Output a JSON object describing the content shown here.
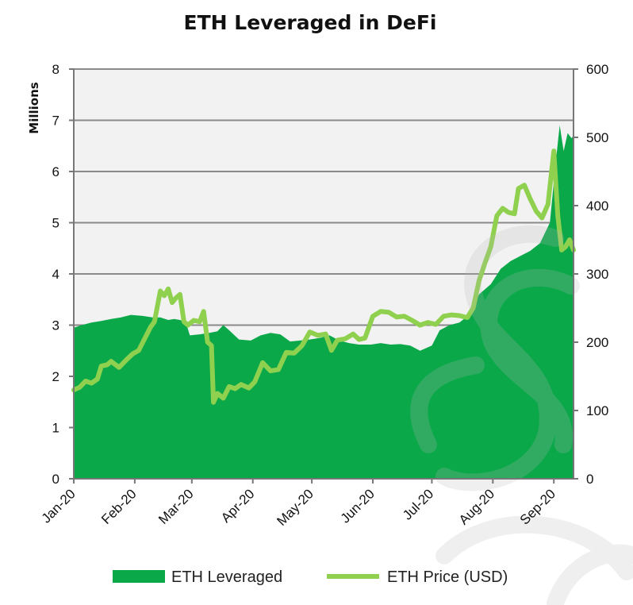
{
  "chart_data": {
    "type": "area",
    "title": "ETH Leveraged in DeFi",
    "ylabel": "Millions",
    "xlabel": "",
    "x_tick_labels": [
      "Jan-20",
      "Feb-20",
      "Mar-20",
      "Apr-20",
      "May-20",
      "Jun-20",
      "Jul-20",
      "Aug-20",
      "Sep-20"
    ],
    "x_tick_dates": [
      "2020-01-01",
      "2020-02-01",
      "2020-03-01",
      "2020-04-01",
      "2020-05-01",
      "2020-06-01",
      "2020-07-01",
      "2020-08-01",
      "2020-09-01"
    ],
    "x_range": [
      "2020-01-01",
      "2020-09-11"
    ],
    "y_left": {
      "min": 0,
      "max": 8,
      "ticks": [
        "0",
        "1",
        "2",
        "3",
        "4",
        "5",
        "6",
        "7",
        "8"
      ]
    },
    "y_right": {
      "min": 0,
      "max": 600,
      "ticks": [
        "0",
        "100",
        "200",
        "300",
        "400",
        "500",
        "600"
      ]
    },
    "grid": "horizontal",
    "plot_background": "#f2f2f2",
    "legend_position": "bottom",
    "series": [
      {
        "name": "ETH Leveraged",
        "kind": "area",
        "axis": "left",
        "color": "#0ba84a",
        "points": [
          [
            "2020-01-01",
            2.95
          ],
          [
            "2020-01-05",
            3.0
          ],
          [
            "2020-01-10",
            3.05
          ],
          [
            "2020-01-15",
            3.08
          ],
          [
            "2020-01-20",
            3.12
          ],
          [
            "2020-01-25",
            3.15
          ],
          [
            "2020-01-30",
            3.2
          ],
          [
            "2020-02-05",
            3.18
          ],
          [
            "2020-02-10",
            3.15
          ],
          [
            "2020-02-14",
            3.15
          ],
          [
            "2020-02-18",
            3.1
          ],
          [
            "2020-02-21",
            3.12
          ],
          [
            "2020-02-24",
            3.1
          ],
          [
            "2020-02-27",
            3.05
          ],
          [
            "2020-02-29",
            2.8
          ],
          [
            "2020-03-05",
            2.82
          ],
          [
            "2020-03-10",
            2.85
          ],
          [
            "2020-03-14",
            2.88
          ],
          [
            "2020-03-17",
            3.0
          ],
          [
            "2020-03-20",
            2.9
          ],
          [
            "2020-03-25",
            2.72
          ],
          [
            "2020-03-31",
            2.7
          ],
          [
            "2020-04-05",
            2.8
          ],
          [
            "2020-04-10",
            2.85
          ],
          [
            "2020-04-15",
            2.82
          ],
          [
            "2020-04-20",
            2.68
          ],
          [
            "2020-04-25",
            2.7
          ],
          [
            "2020-04-30",
            2.72
          ],
          [
            "2020-05-05",
            2.75
          ],
          [
            "2020-05-10",
            2.8
          ],
          [
            "2020-05-15",
            2.7
          ],
          [
            "2020-05-20",
            2.65
          ],
          [
            "2020-05-25",
            2.62
          ],
          [
            "2020-05-31",
            2.62
          ],
          [
            "2020-06-05",
            2.65
          ],
          [
            "2020-06-10",
            2.62
          ],
          [
            "2020-06-15",
            2.63
          ],
          [
            "2020-06-20",
            2.6
          ],
          [
            "2020-06-25",
            2.5
          ],
          [
            "2020-06-28",
            2.55
          ],
          [
            "2020-07-01",
            2.6
          ],
          [
            "2020-07-05",
            2.9
          ],
          [
            "2020-07-10",
            3.0
          ],
          [
            "2020-07-15",
            3.05
          ],
          [
            "2020-07-20",
            3.2
          ],
          [
            "2020-07-25",
            3.6
          ],
          [
            "2020-07-31",
            3.8
          ],
          [
            "2020-08-05",
            4.1
          ],
          [
            "2020-08-10",
            4.25
          ],
          [
            "2020-08-15",
            4.35
          ],
          [
            "2020-08-20",
            4.45
          ],
          [
            "2020-08-25",
            4.6
          ],
          [
            "2020-08-30",
            5.0
          ],
          [
            "2020-09-02",
            6.2
          ],
          [
            "2020-09-04",
            6.9
          ],
          [
            "2020-09-06",
            6.4
          ],
          [
            "2020-09-08",
            6.75
          ],
          [
            "2020-09-10",
            6.65
          ],
          [
            "2020-09-11",
            6.7
          ]
        ]
      },
      {
        "name": "ETH Price (USD)",
        "kind": "line",
        "axis": "right",
        "color": "#8fd14f",
        "points": [
          [
            "2020-01-01",
            130
          ],
          [
            "2020-01-04",
            134
          ],
          [
            "2020-01-07",
            143
          ],
          [
            "2020-01-10",
            140
          ],
          [
            "2020-01-13",
            146
          ],
          [
            "2020-01-15",
            165
          ],
          [
            "2020-01-18",
            167
          ],
          [
            "2020-01-20",
            172
          ],
          [
            "2020-01-24",
            163
          ],
          [
            "2020-01-28",
            175
          ],
          [
            "2020-01-31",
            183
          ],
          [
            "2020-02-03",
            188
          ],
          [
            "2020-02-06",
            205
          ],
          [
            "2020-02-09",
            222
          ],
          [
            "2020-02-11",
            230
          ],
          [
            "2020-02-14",
            275
          ],
          [
            "2020-02-16",
            268
          ],
          [
            "2020-02-18",
            278
          ],
          [
            "2020-02-20",
            258
          ],
          [
            "2020-02-22",
            265
          ],
          [
            "2020-02-24",
            270
          ],
          [
            "2020-02-26",
            230
          ],
          [
            "2020-02-28",
            225
          ],
          [
            "2020-03-02",
            232
          ],
          [
            "2020-03-05",
            230
          ],
          [
            "2020-03-07",
            245
          ],
          [
            "2020-03-09",
            200
          ],
          [
            "2020-03-11",
            195
          ],
          [
            "2020-03-12",
            112
          ],
          [
            "2020-03-14",
            125
          ],
          [
            "2020-03-17",
            118
          ],
          [
            "2020-03-20",
            135
          ],
          [
            "2020-03-23",
            132
          ],
          [
            "2020-03-26",
            138
          ],
          [
            "2020-03-30",
            133
          ],
          [
            "2020-04-02",
            142
          ],
          [
            "2020-04-06",
            170
          ],
          [
            "2020-04-10",
            158
          ],
          [
            "2020-04-14",
            160
          ],
          [
            "2020-04-18",
            185
          ],
          [
            "2020-04-22",
            184
          ],
          [
            "2020-04-26",
            195
          ],
          [
            "2020-04-30",
            215
          ],
          [
            "2020-05-04",
            210
          ],
          [
            "2020-05-08",
            212
          ],
          [
            "2020-05-11",
            188
          ],
          [
            "2020-05-14",
            203
          ],
          [
            "2020-05-18",
            205
          ],
          [
            "2020-05-22",
            212
          ],
          [
            "2020-05-25",
            204
          ],
          [
            "2020-05-28",
            206
          ],
          [
            "2020-06-01",
            238
          ],
          [
            "2020-06-05",
            245
          ],
          [
            "2020-06-09",
            244
          ],
          [
            "2020-06-13",
            237
          ],
          [
            "2020-06-17",
            238
          ],
          [
            "2020-06-21",
            232
          ],
          [
            "2020-06-25",
            225
          ],
          [
            "2020-06-29",
            229
          ],
          [
            "2020-07-03",
            226
          ],
          [
            "2020-07-07",
            238
          ],
          [
            "2020-07-11",
            240
          ],
          [
            "2020-07-15",
            239
          ],
          [
            "2020-07-19",
            236
          ],
          [
            "2020-07-22",
            250
          ],
          [
            "2020-07-25",
            290
          ],
          [
            "2020-07-28",
            316
          ],
          [
            "2020-07-31",
            340
          ],
          [
            "2020-08-03",
            385
          ],
          [
            "2020-08-06",
            396
          ],
          [
            "2020-08-09",
            390
          ],
          [
            "2020-08-12",
            388
          ],
          [
            "2020-08-14",
            425
          ],
          [
            "2020-08-17",
            430
          ],
          [
            "2020-08-20",
            410
          ],
          [
            "2020-08-23",
            392
          ],
          [
            "2020-08-26",
            382
          ],
          [
            "2020-08-29",
            402
          ],
          [
            "2020-09-01",
            480
          ],
          [
            "2020-09-03",
            385
          ],
          [
            "2020-09-05",
            335
          ],
          [
            "2020-09-07",
            340
          ],
          [
            "2020-09-09",
            350
          ],
          [
            "2020-09-11",
            335
          ]
        ]
      }
    ]
  }
}
